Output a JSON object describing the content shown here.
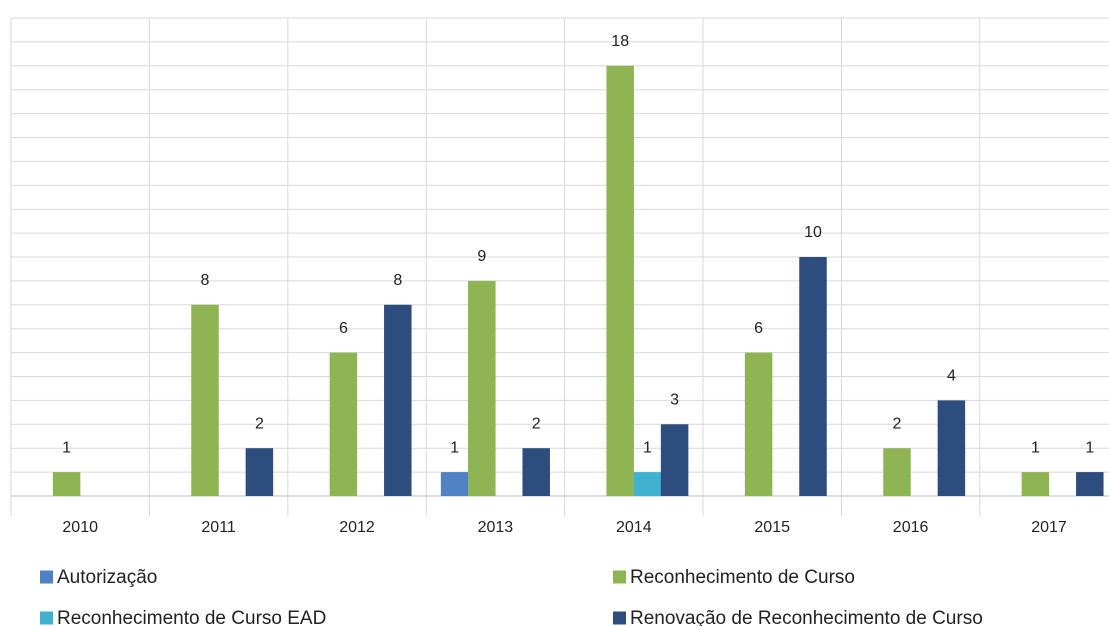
{
  "chart_data": {
    "type": "bar",
    "categories": [
      "2010",
      "2011",
      "2012",
      "2013",
      "2014",
      "2015",
      "2016",
      "2017"
    ],
    "series": [
      {
        "name": "Autorização",
        "color": "#4f81c4",
        "values": [
          null,
          null,
          null,
          1,
          null,
          null,
          null,
          null
        ]
      },
      {
        "name": "Reconhecimento de Curso",
        "color": "#8fb454",
        "values": [
          1,
          8,
          6,
          9,
          18,
          6,
          2,
          1
        ]
      },
      {
        "name": "Reconhecimento de Curso EAD",
        "color": "#40b2cf",
        "values": [
          null,
          null,
          null,
          null,
          1,
          null,
          null,
          null
        ]
      },
      {
        "name": "Renovação de Reconhecimento de Curso",
        "color": "#2d4d7e",
        "values": [
          null,
          2,
          8,
          2,
          3,
          10,
          4,
          1
        ]
      }
    ],
    "ylim": [
      0,
      20
    ],
    "yticks": [
      0,
      1,
      2,
      3,
      4,
      5,
      6,
      7,
      8,
      9,
      10,
      11,
      12,
      13,
      14,
      15,
      16,
      17,
      18,
      19,
      20
    ],
    "grid": true
  }
}
